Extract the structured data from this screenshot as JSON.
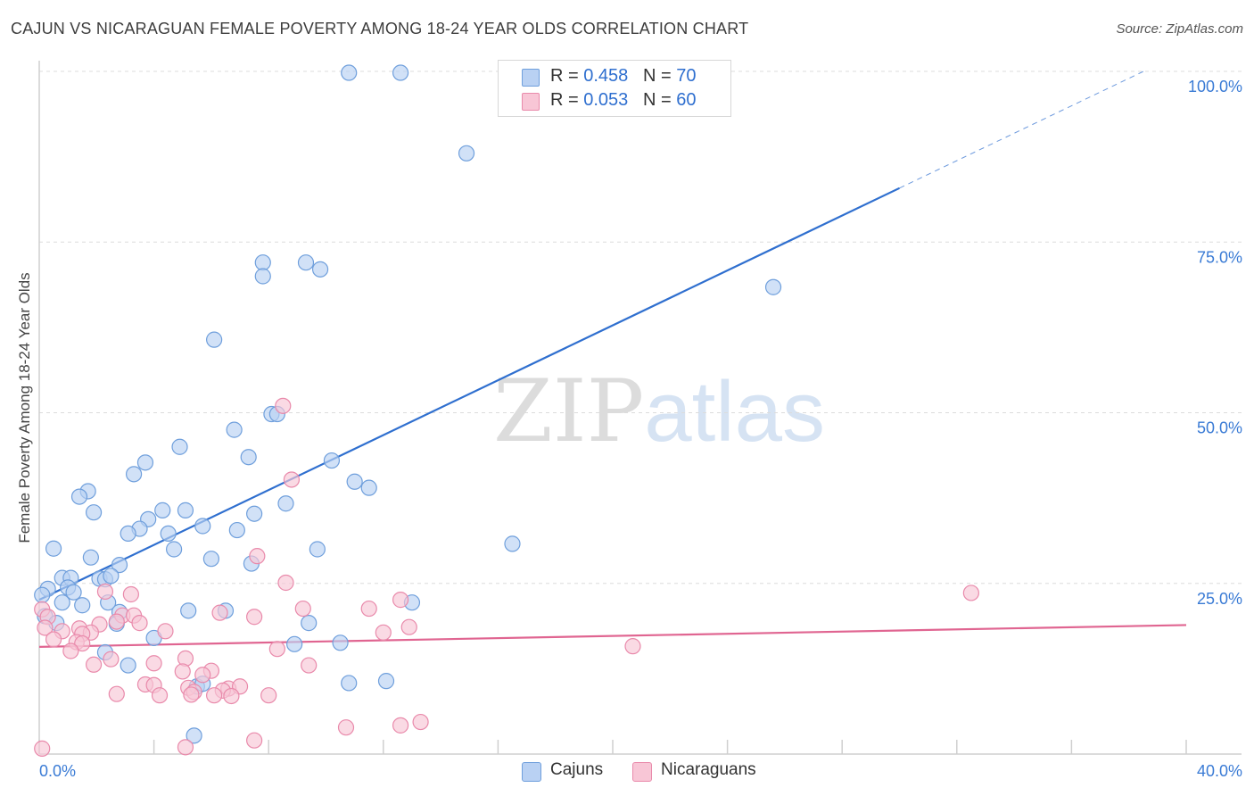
{
  "title": "CAJUN VS NICARAGUAN FEMALE POVERTY AMONG 18-24 YEAR OLDS CORRELATION CHART",
  "source": "Source: ZipAtlas.com",
  "watermark": {
    "zip": "ZIP",
    "atlas": "atlas"
  },
  "colors": {
    "cajun_fill": "#b9d1f3",
    "cajun_stroke": "#6f9fdc",
    "cajun_line": "#2f6fcf",
    "nic_fill": "#f8c6d6",
    "nic_stroke": "#e98aab",
    "nic_line": "#e06591",
    "grid": "#dcdcdc",
    "tick_text": "#3a7bd5"
  },
  "legend": {
    "rows": [
      {
        "r_label": "R = ",
        "r_value": "0.458",
        "n_label": "N = ",
        "n_value": "70"
      },
      {
        "r_label": "R = ",
        "r_value": "0.053",
        "n_label": "N = ",
        "n_value": "60"
      }
    ]
  },
  "bottom_legend": {
    "cajun": "Cajuns",
    "nic": "Nicaraguans"
  },
  "chart_data": {
    "type": "scatter",
    "ylabel": "Female Poverty Among 18-24 Year Olds",
    "xlim": [
      0,
      40
    ],
    "ylim": [
      0,
      100
    ],
    "x_tick_labels": [
      {
        "x": 0,
        "label": "0.0%"
      },
      {
        "x": 40,
        "label": "40.0%"
      }
    ],
    "y_tick_labels": [
      {
        "y": 25,
        "label": "25.0%"
      },
      {
        "y": 50,
        "label": "50.0%"
      },
      {
        "y": 75,
        "label": "75.0%"
      },
      {
        "y": 100,
        "label": "100.0%"
      }
    ],
    "grid": true,
    "legend_position": "top-center",
    "series": [
      {
        "name": "Cajuns",
        "r": 0.458,
        "n": 70,
        "trend": {
          "x0": 0,
          "y0": 22.6,
          "x1": 30,
          "y1": 82.9,
          "dashed_to_x": 38.5
        },
        "points": [
          [
            10.8,
            99.8
          ],
          [
            12.6,
            99.8
          ],
          [
            14.9,
            88.0
          ],
          [
            25.6,
            68.4
          ],
          [
            7.8,
            72.0
          ],
          [
            7.8,
            70.0
          ],
          [
            9.3,
            72.0
          ],
          [
            9.8,
            71.0
          ],
          [
            6.1,
            60.7
          ],
          [
            8.1,
            49.8
          ],
          [
            8.3,
            49.8
          ],
          [
            6.8,
            47.5
          ],
          [
            4.9,
            45.0
          ],
          [
            7.3,
            43.5
          ],
          [
            10.2,
            43.0
          ],
          [
            3.7,
            42.7
          ],
          [
            3.3,
            41.0
          ],
          [
            11.0,
            39.9
          ],
          [
            11.5,
            39.0
          ],
          [
            1.7,
            38.5
          ],
          [
            1.4,
            37.7
          ],
          [
            8.6,
            36.7
          ],
          [
            4.3,
            35.7
          ],
          [
            5.1,
            35.7
          ],
          [
            1.9,
            35.4
          ],
          [
            7.5,
            35.2
          ],
          [
            3.8,
            34.4
          ],
          [
            3.5,
            33.0
          ],
          [
            5.7,
            33.4
          ],
          [
            6.9,
            32.8
          ],
          [
            3.1,
            32.3
          ],
          [
            4.5,
            32.3
          ],
          [
            0.5,
            30.1
          ],
          [
            4.7,
            30.0
          ],
          [
            9.7,
            30.0
          ],
          [
            16.5,
            30.8
          ],
          [
            1.8,
            28.8
          ],
          [
            6.0,
            28.6
          ],
          [
            7.4,
            27.9
          ],
          [
            2.8,
            27.7
          ],
          [
            0.8,
            25.8
          ],
          [
            1.1,
            25.8
          ],
          [
            2.1,
            25.7
          ],
          [
            2.3,
            25.6
          ],
          [
            2.5,
            26.1
          ],
          [
            0.3,
            24.2
          ],
          [
            1.0,
            24.4
          ],
          [
            1.2,
            23.7
          ],
          [
            0.1,
            23.3
          ],
          [
            0.8,
            22.2
          ],
          [
            1.5,
            21.8
          ],
          [
            2.4,
            22.2
          ],
          [
            13.0,
            22.2
          ],
          [
            5.2,
            21.0
          ],
          [
            6.5,
            21.0
          ],
          [
            2.8,
            20.8
          ],
          [
            0.2,
            20.2
          ],
          [
            0.6,
            19.2
          ],
          [
            2.7,
            19.1
          ],
          [
            9.4,
            19.2
          ],
          [
            4.0,
            17.0
          ],
          [
            8.9,
            16.1
          ],
          [
            10.5,
            16.3
          ],
          [
            2.3,
            14.9
          ],
          [
            3.1,
            13.0
          ],
          [
            10.8,
            10.4
          ],
          [
            12.1,
            10.7
          ],
          [
            5.5,
            9.9
          ],
          [
            5.7,
            10.3
          ],
          [
            5.4,
            2.7
          ]
        ]
      },
      {
        "name": "Nicaraguans",
        "r": 0.053,
        "n": 60,
        "trend": {
          "x0": 0,
          "y0": 15.7,
          "x1": 40,
          "y1": 18.9
        },
        "points": [
          [
            8.5,
            51.0
          ],
          [
            8.8,
            40.2
          ],
          [
            8.6,
            25.1
          ],
          [
            7.6,
            29.0
          ],
          [
            32.5,
            23.6
          ],
          [
            3.2,
            23.4
          ],
          [
            2.3,
            23.8
          ],
          [
            12.6,
            22.6
          ],
          [
            11.5,
            21.3
          ],
          [
            9.2,
            21.3
          ],
          [
            6.3,
            20.7
          ],
          [
            0.1,
            21.2
          ],
          [
            7.5,
            20.1
          ],
          [
            0.3,
            20.1
          ],
          [
            2.9,
            20.3
          ],
          [
            3.3,
            20.3
          ],
          [
            2.7,
            19.4
          ],
          [
            3.5,
            19.2
          ],
          [
            2.1,
            19.0
          ],
          [
            12.9,
            18.6
          ],
          [
            0.2,
            18.5
          ],
          [
            1.4,
            18.4
          ],
          [
            0.8,
            18.0
          ],
          [
            1.8,
            17.8
          ],
          [
            1.5,
            17.6
          ],
          [
            4.4,
            18.0
          ],
          [
            12.0,
            17.8
          ],
          [
            1.3,
            16.4
          ],
          [
            0.5,
            16.8
          ],
          [
            1.5,
            16.2
          ],
          [
            20.7,
            15.8
          ],
          [
            8.3,
            15.4
          ],
          [
            1.1,
            15.1
          ],
          [
            2.5,
            13.9
          ],
          [
            5.1,
            14.0
          ],
          [
            4.0,
            13.3
          ],
          [
            9.4,
            13.0
          ],
          [
            1.9,
            13.1
          ],
          [
            5.0,
            12.1
          ],
          [
            6.0,
            12.2
          ],
          [
            5.7,
            11.6
          ],
          [
            3.7,
            10.2
          ],
          [
            4.0,
            10.1
          ],
          [
            5.2,
            9.7
          ],
          [
            6.6,
            9.6
          ],
          [
            7.0,
            9.9
          ],
          [
            6.4,
            9.3
          ],
          [
            5.4,
            9.1
          ],
          [
            2.7,
            8.8
          ],
          [
            4.2,
            8.6
          ],
          [
            5.3,
            8.7
          ],
          [
            6.1,
            8.6
          ],
          [
            6.7,
            8.5
          ],
          [
            8.0,
            8.6
          ],
          [
            13.3,
            4.7
          ],
          [
            12.6,
            4.2
          ],
          [
            10.7,
            3.9
          ],
          [
            7.5,
            2.0
          ],
          [
            5.1,
            1.0
          ],
          [
            0.1,
            0.8
          ]
        ]
      }
    ]
  }
}
